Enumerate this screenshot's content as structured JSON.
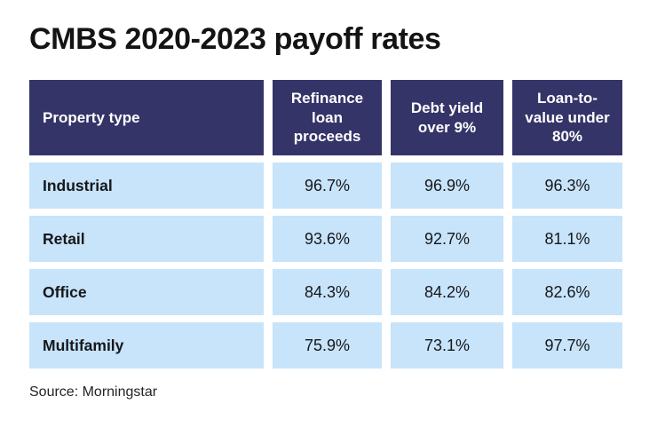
{
  "title": "CMBS 2020-2023 payoff rates",
  "source": "Source: Morningstar",
  "colors": {
    "header_bg": "#353469",
    "header_text": "#ffffff",
    "row_bg": "#c7e4fa",
    "title_text": "#141414"
  },
  "table": {
    "columns": [
      "Property type",
      "Refinance loan proceeds",
      "Debt yield over 9%",
      "Loan-to-value under 80%"
    ],
    "rows": [
      {
        "label": "Industrial",
        "values": [
          "96.7%",
          "96.9%",
          "96.3%"
        ]
      },
      {
        "label": "Retail",
        "values": [
          "93.6%",
          "92.7%",
          "81.1%"
        ]
      },
      {
        "label": "Office",
        "values": [
          "84.3%",
          "84.2%",
          "82.6%"
        ]
      },
      {
        "label": "Multifamily",
        "values": [
          "75.9%",
          "73.1%",
          "97.7%"
        ]
      }
    ]
  },
  "chart_data": {
    "type": "table",
    "title": "CMBS 2020-2023 payoff rates",
    "columns": [
      "Property type",
      "Refinance loan proceeds",
      "Debt yield over 9%",
      "Loan-to-value under 80%"
    ],
    "rows": [
      {
        "label": "Industrial",
        "values": [
          96.7,
          96.9,
          96.3
        ]
      },
      {
        "label": "Retail",
        "values": [
          93.6,
          92.7,
          81.1
        ]
      },
      {
        "label": "Office",
        "values": [
          84.3,
          84.2,
          82.6
        ]
      },
      {
        "label": "Multifamily",
        "values": [
          75.9,
          73.1,
          97.7
        ]
      }
    ],
    "units": "percent",
    "source": "Morningstar"
  }
}
